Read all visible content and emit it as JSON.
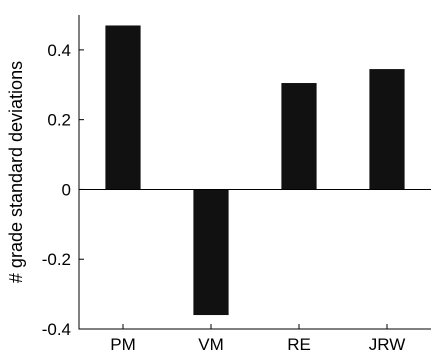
{
  "chart_data": {
    "type": "bar",
    "categories": [
      "PM",
      "VM",
      "RE",
      "JRW"
    ],
    "values": [
      0.47,
      -0.36,
      0.305,
      0.345
    ],
    "ylabel": "# grade standard deviations",
    "xlabel": "",
    "title": "",
    "ylim": [
      -0.4,
      0.5
    ],
    "yticks": [
      -0.4,
      -0.2,
      0,
      0.2,
      0.4
    ],
    "ytick_labels": [
      "-0.4",
      "-0.2",
      "0",
      "0.2",
      "0.4"
    ],
    "zero_line": true,
    "grid": false,
    "colors": {
      "bar": "#111111",
      "axis": "#000000"
    }
  }
}
